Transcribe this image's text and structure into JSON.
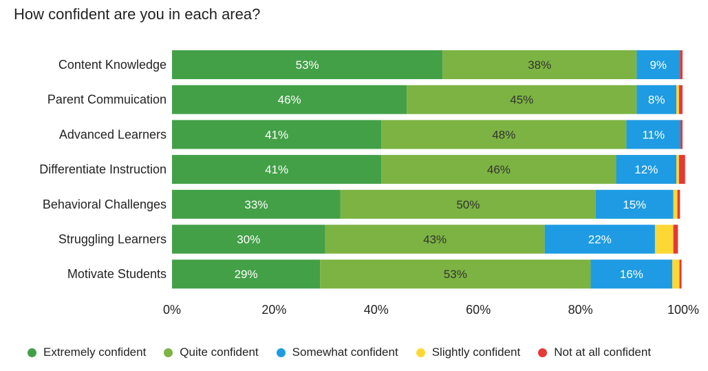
{
  "chart_data": {
    "type": "bar",
    "orientation": "horizontal",
    "stacked": true,
    "title": "How confident are you in each area?",
    "xlabel": "",
    "ylabel": "",
    "xlim": [
      0,
      100
    ],
    "grid": false,
    "legend_position": "bottom",
    "x_ticks": [
      "0%",
      "20%",
      "40%",
      "60%",
      "80%",
      "100%"
    ],
    "categories": [
      "Content Knowledge",
      "Parent Commuication",
      "Advanced Learners",
      "Differentiate Instruction",
      "Behavioral Challenges",
      "Struggling Learners",
      "Motivate Students"
    ],
    "series": [
      {
        "name": "Extremely confident",
        "color": "#43a047",
        "values": [
          53,
          46,
          41,
          41,
          33,
          30,
          29
        ],
        "labels": [
          "53%",
          "46%",
          "41%",
          "41%",
          "33%",
          "30%",
          "29%"
        ],
        "label_color": "#ffffff"
      },
      {
        "name": "Quite confident",
        "color": "#7cb342",
        "values": [
          38,
          45,
          48,
          46,
          50,
          43,
          53
        ],
        "labels": [
          "38%",
          "45%",
          "48%",
          "46%",
          "50%",
          "43%",
          "53%"
        ],
        "label_color": "#333333"
      },
      {
        "name": "Somewhat confident",
        "color": "#1e9be3",
        "values": [
          8.5,
          7.8,
          10.6,
          11.8,
          15.2,
          21.6,
          16
        ],
        "labels": [
          "9%",
          "8%",
          "11%",
          "12%",
          "15%",
          "22%",
          "16%"
        ],
        "label_color": "#ffffff"
      },
      {
        "name": "Slightly confident",
        "color": "#fdd835",
        "values": [
          0,
          0.5,
          0,
          0.5,
          0.8,
          3.6,
          1.4
        ],
        "labels": [
          "",
          "",
          "",
          "",
          "",
          "",
          ""
        ],
        "label_color": "#333333"
      },
      {
        "name": "Not at all confident",
        "color": "#e53935",
        "values": [
          0.5,
          0.7,
          0.4,
          1.2,
          0.5,
          0.9,
          0.4
        ],
        "labels": [
          "",
          "",
          "",
          "",
          "",
          "",
          ""
        ],
        "label_color": "#ffffff"
      }
    ]
  }
}
